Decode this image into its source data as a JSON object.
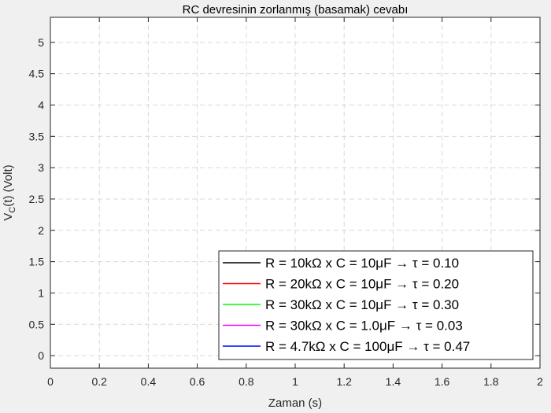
{
  "chart_data": {
    "type": "line",
    "title": "RC devresinin zorlanmış (basamak) cevabı",
    "xlabel": "Zaman (s)",
    "ylabel": {
      "main": "V",
      "sub": "C",
      "rest": "(t) (Volt)"
    },
    "xlim": [
      0,
      2
    ],
    "ylim": [
      -0.2,
      5.4
    ],
    "xticks": [
      "0",
      "0.2",
      "0.4",
      "0.6",
      "0.8",
      "1",
      "1.2",
      "1.4",
      "1.6",
      "1.8",
      "2"
    ],
    "yticks": [
      "0",
      "0.5",
      "1",
      "1.5",
      "2",
      "2.5",
      "3",
      "3.5",
      "4",
      "4.5",
      "5"
    ],
    "grid": true,
    "legend_location": "bottom-right",
    "series": [
      {
        "name": "R = 10kΩ  x  C = 10μF  →  τ = 0.10",
        "color": "#000000",
        "values": []
      },
      {
        "name": "R = 20kΩ  x  C = 10μF  →  τ = 0.20",
        "color": "#ff0000",
        "values": []
      },
      {
        "name": "R = 30kΩ  x  C = 10μF  →  τ = 0.30",
        "color": "#00ff00",
        "values": []
      },
      {
        "name": "R = 30kΩ  x  C = 1.0μF  →  τ = 0.03",
        "color": "#ff00ff",
        "values": []
      },
      {
        "name": "R = 4.7kΩ  x  C = 100μF  →  τ = 0.47",
        "color": "#0000ff",
        "values": []
      }
    ]
  }
}
